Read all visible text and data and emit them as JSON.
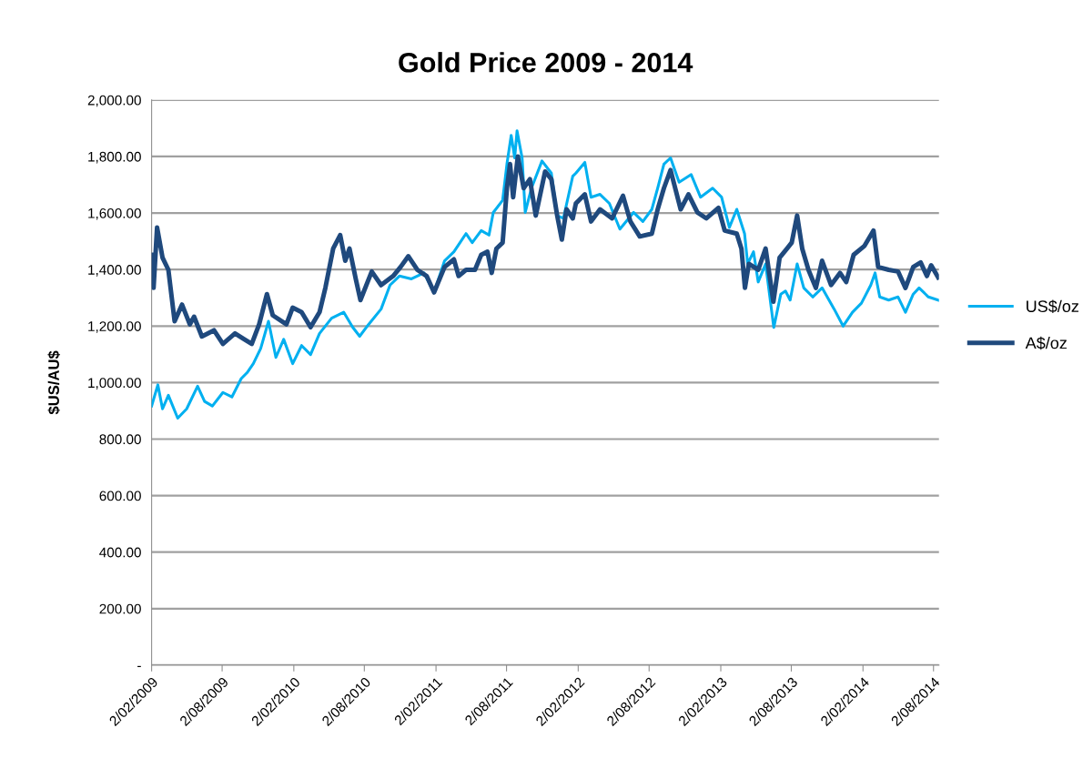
{
  "chart_data": {
    "type": "line",
    "title": "Gold Price 2009 - 2014",
    "ylabel": "$US/AU$",
    "xlim": [
      "2009-02-02",
      "2014-08-16"
    ],
    "xticks": [
      {
        "value": "2009-02-02",
        "label": "2/02/2009"
      },
      {
        "value": "2009-08-02",
        "label": "2/08/2009"
      },
      {
        "value": "2010-02-02",
        "label": "2/02/2010"
      },
      {
        "value": "2010-08-02",
        "label": "2/08/2010"
      },
      {
        "value": "2011-02-02",
        "label": "2/02/2011"
      },
      {
        "value": "2011-08-02",
        "label": "2/08/2011"
      },
      {
        "value": "2012-02-02",
        "label": "2/02/2012"
      },
      {
        "value": "2012-08-02",
        "label": "2/08/2012"
      },
      {
        "value": "2013-02-02",
        "label": "2/02/2013"
      },
      {
        "value": "2013-08-02",
        "label": "2/08/2013"
      },
      {
        "value": "2014-02-02",
        "label": "2/02/2014"
      },
      {
        "value": "2014-08-02",
        "label": "2/08/2014"
      }
    ],
    "ylim": [
      0,
      2000
    ],
    "yticks": [
      {
        "value": 0,
        "label": "-"
      },
      {
        "value": 200,
        "label": "200.00"
      },
      {
        "value": 400,
        "label": "400.00"
      },
      {
        "value": 600,
        "label": "600.00"
      },
      {
        "value": 800,
        "label": "800.00"
      },
      {
        "value": 1000,
        "label": "1,000.00"
      },
      {
        "value": 1200,
        "label": "1,200.00"
      },
      {
        "value": 1400,
        "label": "1,400.00"
      },
      {
        "value": 1600,
        "label": "1,600.00"
      },
      {
        "value": 1800,
        "label": "1,800.00"
      },
      {
        "value": 2000,
        "label": "2,000.00"
      }
    ],
    "grid": "y",
    "legend": "right",
    "marker": "none",
    "line_style": "solid",
    "series": [
      {
        "name": "US$/oz",
        "color": "#00b0f0",
        "x": [
          "2009-02-02",
          "2009-02-18",
          "2009-03-02",
          "2009-03-17",
          "2009-04-10",
          "2009-05-03",
          "2009-05-31",
          "2009-06-18",
          "2009-07-08",
          "2009-08-04",
          "2009-08-27",
          "2009-09-20",
          "2009-10-05",
          "2009-10-21",
          "2009-11-09",
          "2009-11-29",
          "2009-12-18",
          "2010-01-07",
          "2010-01-30",
          "2010-02-22",
          "2010-03-17",
          "2010-04-09",
          "2010-05-10",
          "2010-06-10",
          "2010-07-03",
          "2010-07-21",
          "2010-08-13",
          "2010-09-14",
          "2010-10-07",
          "2010-10-31",
          "2010-12-01",
          "2011-01-02",
          "2011-01-28",
          "2011-02-24",
          "2011-03-20",
          "2011-04-20",
          "2011-05-06",
          "2011-05-29",
          "2011-06-18",
          "2011-06-29",
          "2011-07-23",
          "2011-08-03",
          "2011-08-14",
          "2011-08-23",
          "2011-08-29",
          "2011-09-11",
          "2011-09-19",
          "2011-10-05",
          "2011-11-01",
          "2011-11-25",
          "2011-12-10",
          "2011-12-26",
          "2012-01-19",
          "2012-01-27",
          "2012-02-19",
          "2012-03-06",
          "2012-03-29",
          "2012-04-22",
          "2012-05-19",
          "2012-06-23",
          "2012-07-17",
          "2012-08-09",
          "2012-08-24",
          "2012-09-09",
          "2012-09-26",
          "2012-10-18",
          "2012-11-18",
          "2012-12-12",
          "2013-01-12",
          "2013-02-04",
          "2013-02-24",
          "2013-03-15",
          "2013-04-04",
          "2013-04-12",
          "2013-04-27",
          "2013-05-09",
          "2013-05-28",
          "2013-06-18",
          "2013-07-06",
          "2013-07-18",
          "2013-07-30",
          "2013-08-17",
          "2013-09-03",
          "2013-09-26",
          "2013-10-20",
          "2013-11-20",
          "2013-12-13",
          "2014-01-06",
          "2014-01-29",
          "2014-02-22",
          "2014-03-05",
          "2014-03-17",
          "2014-04-09",
          "2014-05-03",
          "2014-05-22",
          "2014-06-11",
          "2014-06-26",
          "2014-07-20",
          "2014-08-14"
        ],
        "values": [
          917,
          992,
          907,
          955,
          874,
          907,
          987,
          933,
          917,
          965,
          949,
          1014,
          1035,
          1067,
          1121,
          1217,
          1089,
          1153,
          1067,
          1131,
          1099,
          1174,
          1228,
          1249,
          1196,
          1164,
          1206,
          1260,
          1345,
          1377,
          1367,
          1388,
          1319,
          1431,
          1463,
          1527,
          1495,
          1538,
          1522,
          1602,
          1645,
          1773,
          1875,
          1795,
          1891,
          1795,
          1602,
          1688,
          1784,
          1741,
          1591,
          1581,
          1730,
          1741,
          1779,
          1656,
          1666,
          1634,
          1543,
          1602,
          1570,
          1613,
          1688,
          1773,
          1795,
          1709,
          1736,
          1656,
          1688,
          1656,
          1549,
          1613,
          1527,
          1420,
          1463,
          1356,
          1420,
          1195,
          1313,
          1324,
          1292,
          1420,
          1335,
          1303,
          1335,
          1260,
          1200,
          1249,
          1281,
          1345,
          1388,
          1303,
          1292,
          1303,
          1249,
          1313,
          1335,
          1303,
          1292
        ]
      },
      {
        "name": "A$/oz",
        "color": "#1f497d",
        "x": [
          "2009-02-02",
          "2009-02-07",
          "2009-02-16",
          "2009-03-02",
          "2009-03-17",
          "2009-04-02",
          "2009-04-21",
          "2009-05-11",
          "2009-05-22",
          "2009-06-11",
          "2009-07-12",
          "2009-08-04",
          "2009-09-04",
          "2009-09-28",
          "2009-10-17",
          "2009-11-05",
          "2009-11-25",
          "2009-12-10",
          "2010-01-14",
          "2010-01-30",
          "2010-02-22",
          "2010-03-17",
          "2010-04-09",
          "2010-04-24",
          "2010-05-14",
          "2010-06-01",
          "2010-06-14",
          "2010-06-25",
          "2010-07-11",
          "2010-07-23",
          "2010-08-21",
          "2010-09-14",
          "2010-10-15",
          "2010-11-03",
          "2010-11-23",
          "2010-12-16",
          "2011-01-09",
          "2011-01-28",
          "2011-02-24",
          "2011-03-20",
          "2011-04-01",
          "2011-04-20",
          "2011-05-13",
          "2011-05-29",
          "2011-06-14",
          "2011-06-25",
          "2011-07-07",
          "2011-07-23",
          "2011-08-03",
          "2011-08-11",
          "2011-08-19",
          "2011-08-31",
          "2011-09-15",
          "2011-10-01",
          "2011-10-16",
          "2011-11-09",
          "2011-11-25",
          "2011-12-10",
          "2011-12-22",
          "2012-01-03",
          "2012-01-19",
          "2012-01-27",
          "2012-02-19",
          "2012-03-06",
          "2012-03-29",
          "2012-04-29",
          "2012-05-27",
          "2012-06-15",
          "2012-07-09",
          "2012-08-09",
          "2012-08-24",
          "2012-09-09",
          "2012-09-26",
          "2012-10-10",
          "2012-10-22",
          "2012-11-11",
          "2012-12-04",
          "2012-12-27",
          "2013-01-27",
          "2013-02-12",
          "2013-03-15",
          "2013-03-27",
          "2013-04-05",
          "2013-04-15",
          "2013-05-09",
          "2013-05-28",
          "2013-06-17",
          "2013-07-03",
          "2013-07-22",
          "2013-08-03",
          "2013-08-17",
          "2013-08-30",
          "2013-09-15",
          "2013-10-04",
          "2013-10-20",
          "2013-11-12",
          "2013-12-05",
          "2013-12-21",
          "2014-01-09",
          "2014-02-06",
          "2014-03-01",
          "2014-03-13",
          "2014-04-09",
          "2014-05-03",
          "2014-05-22",
          "2014-06-11",
          "2014-06-30",
          "2014-07-16",
          "2014-07-27",
          "2014-08-14"
        ],
        "values": [
          1452,
          1335,
          1549,
          1442,
          1399,
          1217,
          1276,
          1206,
          1233,
          1163,
          1185,
          1137,
          1174,
          1153,
          1137,
          1206,
          1313,
          1238,
          1206,
          1265,
          1249,
          1196,
          1249,
          1335,
          1474,
          1522,
          1431,
          1474,
          1367,
          1292,
          1393,
          1345,
          1377,
          1409,
          1447,
          1399,
          1377,
          1319,
          1409,
          1436,
          1377,
          1399,
          1399,
          1452,
          1463,
          1388,
          1474,
          1495,
          1688,
          1773,
          1656,
          1800,
          1688,
          1720,
          1591,
          1747,
          1720,
          1591,
          1506,
          1613,
          1581,
          1634,
          1666,
          1570,
          1613,
          1581,
          1661,
          1570,
          1517,
          1527,
          1613,
          1688,
          1752,
          1677,
          1613,
          1666,
          1602,
          1581,
          1618,
          1538,
          1527,
          1474,
          1335,
          1420,
          1399,
          1474,
          1286,
          1442,
          1474,
          1495,
          1591,
          1474,
          1399,
          1335,
          1431,
          1345,
          1388,
          1356,
          1452,
          1484,
          1538,
          1409,
          1399,
          1393,
          1335,
          1409,
          1425,
          1377,
          1415,
          1372
        ]
      }
    ]
  }
}
